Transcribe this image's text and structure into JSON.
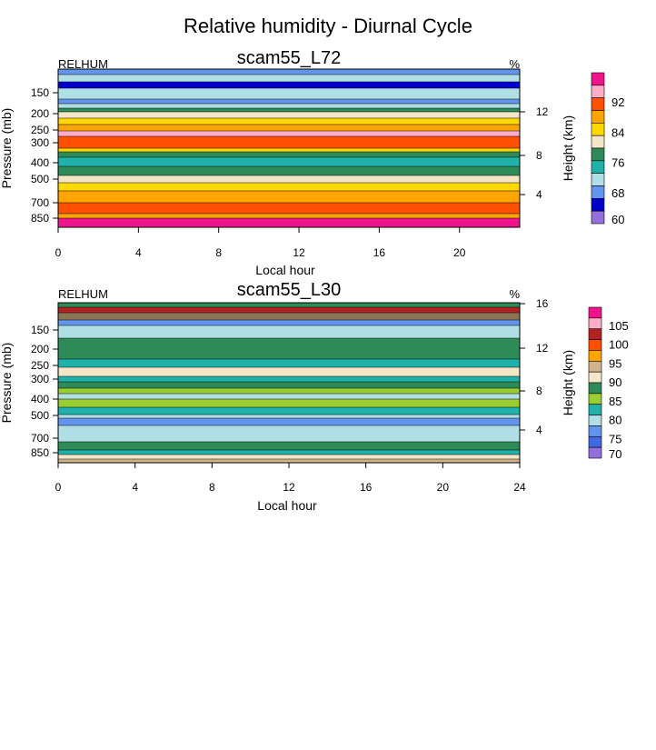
{
  "figure_title": "Relative humidity - Diurnal Cycle",
  "chart_data": [
    {
      "type": "heatmap",
      "title": "scam55_L72",
      "left_label": "RELHUM",
      "units": "%",
      "xlabel": "Local hour",
      "ylabel": "Pressure (mb)",
      "right_ylabel": "Height (km)",
      "xlim": [
        0,
        23
      ],
      "x_ticks": [
        0,
        4,
        8,
        12,
        16,
        20
      ],
      "y_ticks": [
        150,
        200,
        250,
        300,
        400,
        500,
        700,
        850
      ],
      "height_ticks": [
        12,
        8,
        4
      ],
      "legend": {
        "labels": [
          "92",
          "84",
          "76",
          "68",
          "60"
        ],
        "colors": [
          "#f0148c",
          "#ffaec9",
          "#ff4f00",
          "#ffa500",
          "#ffd800",
          "#f5e6c8",
          "#2e8b57",
          "#20b2aa",
          "#b0e0e6",
          "#6495ed",
          "#0000cd",
          "#9370db"
        ]
      },
      "layers": [
        {
          "color": "#6495ed"
        },
        {
          "color": "#b0e0e6"
        },
        {
          "color": "#0000cd"
        },
        {
          "color": "#b0e0e6"
        },
        {
          "color": "#6495ed"
        },
        {
          "color": "#b0e0e6"
        },
        {
          "color": "#2e8b57"
        },
        {
          "color": "#f5e6c8"
        },
        {
          "color": "#ffd800"
        },
        {
          "color": "#ffa500"
        },
        {
          "color": "#ffaec9"
        },
        {
          "color": "#ff4f00"
        },
        {
          "color": "#ffd800"
        },
        {
          "color": "#2e8b57"
        },
        {
          "color": "#20b2aa"
        },
        {
          "color": "#2e8b57"
        },
        {
          "color": "#f5e6c8"
        },
        {
          "color": "#ffd800"
        },
        {
          "color": "#ffa500"
        },
        {
          "color": "#ff4f00"
        },
        {
          "color": "#ffa500"
        },
        {
          "color": "#f0148c"
        }
      ]
    },
    {
      "type": "heatmap",
      "title": "scam55_L30",
      "left_label": "RELHUM",
      "units": "%",
      "xlabel": "Local hour",
      "ylabel": "Pressure (mb)",
      "right_ylabel": "Height (km)",
      "xlim": [
        0,
        24
      ],
      "x_ticks": [
        0,
        4,
        8,
        12,
        16,
        20,
        24
      ],
      "y_ticks": [
        150,
        200,
        250,
        300,
        400,
        500,
        700,
        850
      ],
      "height_ticks": [
        16,
        12,
        8,
        4
      ],
      "legend": {
        "labels": [
          "105",
          "100",
          "95",
          "90",
          "85",
          "80",
          "75",
          "70"
        ],
        "colors": [
          "#f0148c",
          "#ffaec9",
          "#b22222",
          "#ff4f00",
          "#ffa500",
          "#d2b48c",
          "#f5e6c8",
          "#2e8b57",
          "#9acd32",
          "#20b2aa",
          "#b0e0e6",
          "#6495ed",
          "#4169e1",
          "#9370db"
        ]
      },
      "layers": [
        {
          "color": "#2e8b57"
        },
        {
          "color": "#b22222"
        },
        {
          "color": "#8b7355"
        },
        {
          "color": "#6495ed"
        },
        {
          "color": "#b0e0e6"
        },
        {
          "color": "#2e8b57"
        },
        {
          "color": "#20b2aa"
        },
        {
          "color": "#f5e6c8"
        },
        {
          "color": "#20b2aa"
        },
        {
          "color": "#2e8b57"
        },
        {
          "color": "#9acd32"
        },
        {
          "color": "#b0e0e6"
        },
        {
          "color": "#9acd32"
        },
        {
          "color": "#20b2aa"
        },
        {
          "color": "#b0e0e6"
        },
        {
          "color": "#6495ed"
        },
        {
          "color": "#b0e0e6"
        },
        {
          "color": "#2e8b57"
        },
        {
          "color": "#20b2aa"
        },
        {
          "color": "#f5e6c8"
        },
        {
          "color": "#d2b48c"
        }
      ]
    }
  ]
}
